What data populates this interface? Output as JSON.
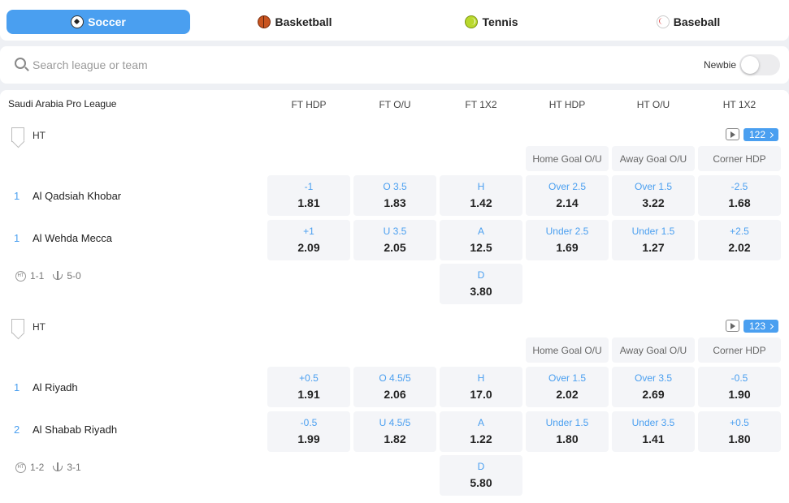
{
  "sports": [
    {
      "label": "Soccer",
      "icon": "soccer-ball-icon",
      "active": true
    },
    {
      "label": "Basketball",
      "icon": "basketball-icon",
      "active": false
    },
    {
      "label": "Tennis",
      "icon": "tennis-ball-icon",
      "active": false
    },
    {
      "label": "Baseball",
      "icon": "baseball-icon",
      "active": false
    }
  ],
  "search": {
    "placeholder": "Search league or team",
    "value": ""
  },
  "newbie": {
    "label": "Newbie",
    "on": false
  },
  "league": {
    "name": "Saudi Arabia Pro League",
    "columns": [
      "FT HDP",
      "FT O/U",
      "FT 1X2",
      "HT HDP",
      "HT O/U",
      "HT 1X2"
    ]
  },
  "matches": [
    {
      "period": "HT",
      "count": "122",
      "markets": [
        "Home Goal O/U",
        "Away Goal O/U",
        "Corner HDP"
      ],
      "teams": [
        {
          "rank": "1",
          "name": "Al Qadsiah Khobar"
        },
        {
          "rank": "1",
          "name": "Al Wehda Mecca"
        }
      ],
      "score_ht": "1-1",
      "score_corner": "5-0",
      "odds": [
        [
          {
            "label": "-1",
            "value": "1.81"
          },
          {
            "label": "O 3.5",
            "value": "1.83"
          },
          {
            "label": "H",
            "value": "1.42"
          },
          {
            "label": "Over 2.5",
            "value": "2.14"
          },
          {
            "label": "Over 1.5",
            "value": "3.22"
          },
          {
            "label": "-2.5",
            "value": "1.68"
          }
        ],
        [
          {
            "label": "+1",
            "value": "2.09"
          },
          {
            "label": "U 3.5",
            "value": "2.05"
          },
          {
            "label": "A",
            "value": "12.5"
          },
          {
            "label": "Under 2.5",
            "value": "1.69"
          },
          {
            "label": "Under 1.5",
            "value": "1.27"
          },
          {
            "label": "+2.5",
            "value": "2.02"
          }
        ]
      ],
      "draw": {
        "label": "D",
        "value": "3.80"
      }
    },
    {
      "period": "HT",
      "count": "123",
      "markets": [
        "Home Goal O/U",
        "Away Goal O/U",
        "Corner HDP"
      ],
      "teams": [
        {
          "rank": "1",
          "name": "Al Riyadh"
        },
        {
          "rank": "2",
          "name": "Al Shabab Riyadh"
        }
      ],
      "score_ht": "1-2",
      "score_corner": "3-1",
      "odds": [
        [
          {
            "label": "+0.5",
            "value": "1.91"
          },
          {
            "label": "O 4.5/5",
            "value": "2.06"
          },
          {
            "label": "H",
            "value": "17.0"
          },
          {
            "label": "Over 1.5",
            "value": "2.02"
          },
          {
            "label": "Over 3.5",
            "value": "2.69"
          },
          {
            "label": "-0.5",
            "value": "1.90"
          }
        ],
        [
          {
            "label": "-0.5",
            "value": "1.99"
          },
          {
            "label": "U 4.5/5",
            "value": "1.82"
          },
          {
            "label": "A",
            "value": "1.22"
          },
          {
            "label": "Under 1.5",
            "value": "1.80"
          },
          {
            "label": "Under 3.5",
            "value": "1.41"
          },
          {
            "label": "+0.5",
            "value": "1.80"
          }
        ]
      ],
      "draw": {
        "label": "D",
        "value": "5.80"
      }
    }
  ]
}
